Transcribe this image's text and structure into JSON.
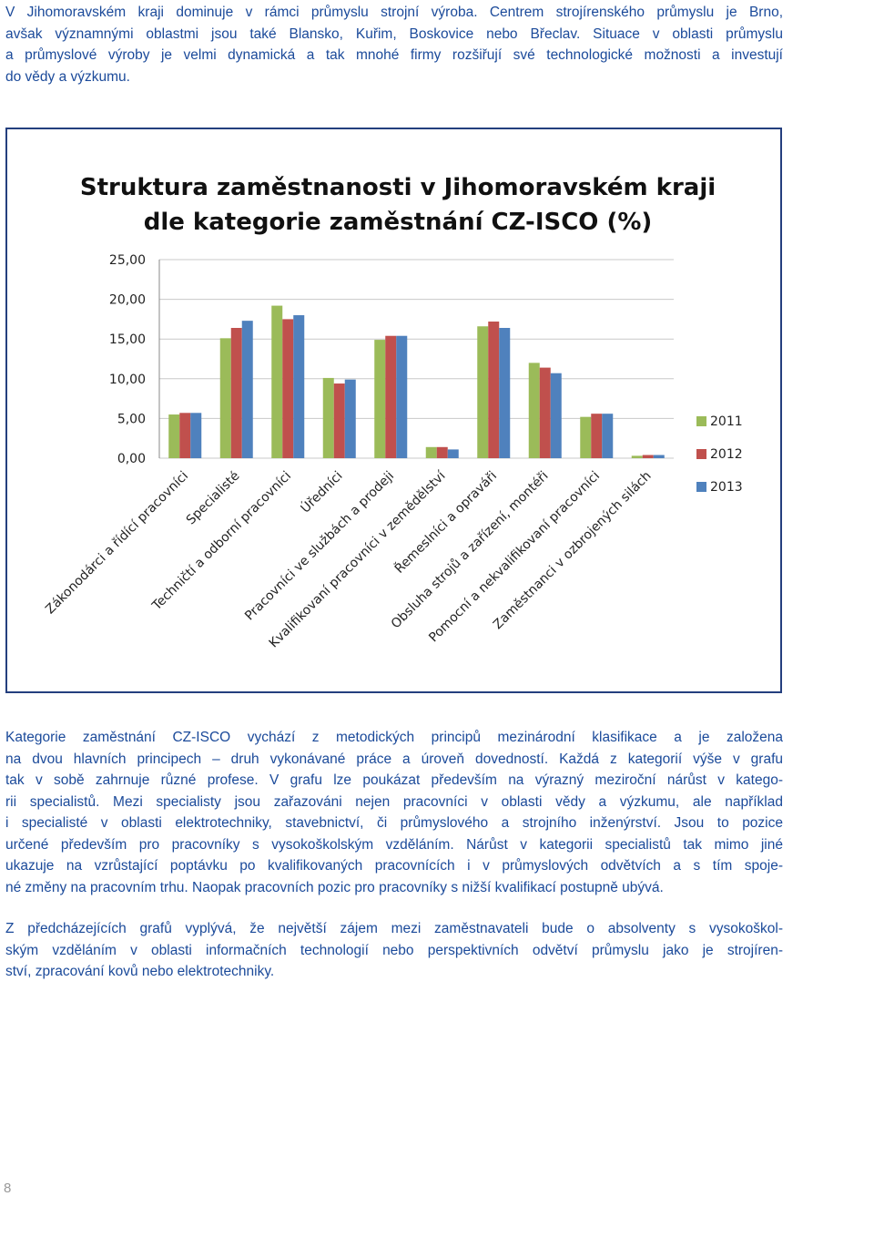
{
  "intro": {
    "lines": [
      "V Jihomoravském kraji dominuje v rámci průmyslu strojní výroba. Centrem strojírenského průmyslu je Brno,",
      "avšak významnými oblastmi jsou také Blansko, Kuřim, Boskovice nebo Břeclav. Situace v oblasti průmyslu",
      "a průmyslové výroby je velmi dynamická a tak mnohé firmy rozšiřují své technologické možnosti a investují",
      "do vědy a výzkumu."
    ]
  },
  "chart_data": {
    "type": "bar",
    "title": [
      "Struktura zaměstnanosti v Jihomoravském kraji",
      "dle kategorie zaměstnání CZ-ISCO (%)"
    ],
    "categories": [
      "Zákonodárci a řídící pracovníci",
      "Specialisté",
      "Techničtí a odborní pracovníci",
      "Úředníci",
      "Pracovníci ve službách a prodeji",
      "Kvalifikovaní pracovníci v zemědělství",
      "Řemeslníci a opraváři",
      "Obsluha strojů a zařízení, montéři",
      "Pomocní a nekvalifikovaní pracovníci",
      "Zaměstnanci v ozbrojených silách"
    ],
    "series": [
      {
        "name": "2011",
        "color": "#9bbb59",
        "values": [
          5.5,
          15.1,
          19.2,
          10.1,
          14.9,
          1.4,
          16.6,
          12.0,
          5.2,
          0.3
        ]
      },
      {
        "name": "2012",
        "color": "#c0504d",
        "values": [
          5.7,
          16.4,
          17.5,
          9.4,
          15.4,
          1.4,
          17.2,
          11.4,
          5.6,
          0.4
        ]
      },
      {
        "name": "2013",
        "color": "#4f81bd",
        "values": [
          5.7,
          17.3,
          18.0,
          9.9,
          15.4,
          1.1,
          16.4,
          10.7,
          5.6,
          0.4
        ]
      }
    ],
    "ylim": [
      0,
      25
    ],
    "yticks": [
      {
        "value": 0,
        "label": "0,00"
      },
      {
        "value": 5,
        "label": "5,00"
      },
      {
        "value": 10,
        "label": "10,00"
      },
      {
        "value": 15,
        "label": "15,00"
      },
      {
        "value": 20,
        "label": "20,00"
      },
      {
        "value": 25,
        "label": "25,00"
      }
    ],
    "grid": true,
    "legend": "right"
  },
  "body": {
    "paragraphs": [
      {
        "lines": [
          "Kategorie zaměstnání CZ-ISCO vychází z metodických principů mezinárodní klasifikace a je založena",
          "na dvou hlavních principech – druh vykonávané práce a úroveň dovedností. Každá z kategorií výše v grafu",
          "tak v sobě zahrnuje různé profese. V grafu lze poukázat především na výrazný meziroční nárůst v katego-",
          "rii specialistů. Mezi specialisty jsou zařazováni nejen pracovníci v oblasti vědy a výzkumu, ale například",
          "i specialisté v oblasti elektrotechniky, stavebnictví, či průmyslového a strojního inženýrství. Jsou to pozice",
          "určené především pro pracovníky s vysokoškolským vzděláním. Nárůst v kategorii specialistů tak mimo jiné",
          "ukazuje na vzrůstající poptávku po kvalifikovaných pracovnících i v průmyslových odvětvích a s tím spoje-",
          "né změny na pracovním trhu. Naopak pracovních pozic pro pracovníky s nižší kvalifikací postupně ubývá."
        ]
      },
      {
        "lines": [
          "Z předcházejících grafů vyplývá, že největší zájem mezi zaměstnavateli bude o absolventy s vysokoškol-",
          "ským vzděláním v oblasti informačních technologií nebo perspektivních odvětví průmyslu jako je strojíren-",
          "ství, zpracování kovů nebo elektrotechniky."
        ]
      }
    ]
  },
  "page_number": "8"
}
